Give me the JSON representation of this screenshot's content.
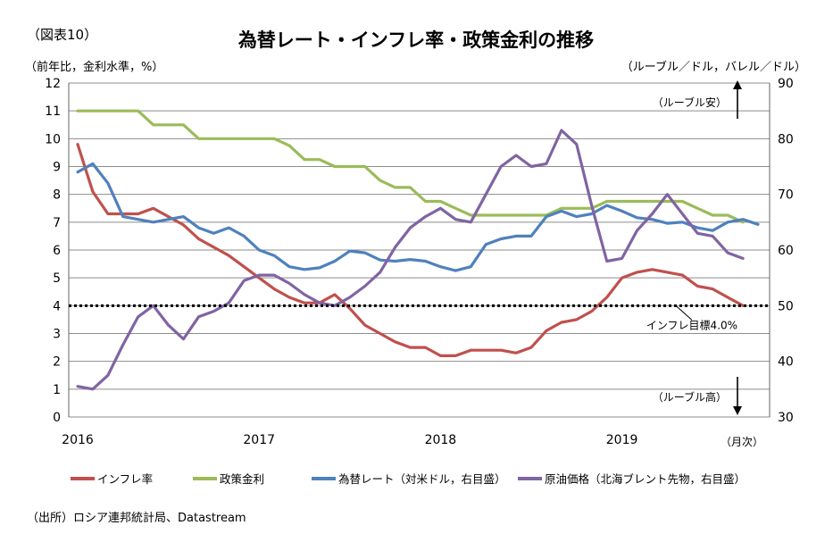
{
  "figure_label": "（図表10）",
  "source_note": "（出所）ロシア連邦統計局、Datastream",
  "chart_data": {
    "type": "line",
    "title": "為替レート・インフレ率・政策金利の推移",
    "left_axis_unit": "（前年比，金利水準，%）",
    "right_axis_unit": "（ルーブル／ドル，バレル／ドル）",
    "x_unit": "（月次）",
    "x_ticks": [
      "2016",
      "2017",
      "2018",
      "2019"
    ],
    "ylim_left": [
      0,
      12
    ],
    "yticks_left": [
      "0",
      "1",
      "2",
      "3",
      "4",
      "5",
      "6",
      "7",
      "8",
      "9",
      "10",
      "11",
      "12"
    ],
    "ylim_right": [
      30,
      90
    ],
    "yticks_right": [
      "30",
      "40",
      "50",
      "60",
      "70",
      "80",
      "90"
    ],
    "grid": true,
    "legend_position": "bottom",
    "annotations": {
      "ruble_weak": "（ルーブル安）",
      "ruble_strong": "（ルーブル高）",
      "inflation_target": "インフレ目標4.0%",
      "target_value": 4.0
    },
    "months": [
      "2016-01",
      "2016-02",
      "2016-03",
      "2016-04",
      "2016-05",
      "2016-06",
      "2016-07",
      "2016-08",
      "2016-09",
      "2016-10",
      "2016-11",
      "2016-12",
      "2017-01",
      "2017-02",
      "2017-03",
      "2017-04",
      "2017-05",
      "2017-06",
      "2017-07",
      "2017-08",
      "2017-09",
      "2017-10",
      "2017-11",
      "2017-12",
      "2018-01",
      "2018-02",
      "2018-03",
      "2018-04",
      "2018-05",
      "2018-06",
      "2018-07",
      "2018-08",
      "2018-09",
      "2018-10",
      "2018-11",
      "2018-12",
      "2019-01",
      "2019-02",
      "2019-03",
      "2019-04",
      "2019-05",
      "2019-06",
      "2019-07",
      "2019-08",
      "2019-09",
      "2019-10"
    ],
    "series": [
      {
        "name": "インフレ率",
        "axis": "left",
        "color": "#c0504d",
        "values": [
          9.8,
          8.1,
          7.3,
          7.3,
          7.3,
          7.5,
          7.2,
          6.9,
          6.4,
          6.1,
          5.8,
          5.4,
          5.0,
          4.6,
          4.3,
          4.1,
          4.1,
          4.4,
          3.9,
          3.3,
          3.0,
          2.7,
          2.5,
          2.5,
          2.2,
          2.2,
          2.4,
          2.4,
          2.4,
          2.3,
          2.5,
          3.1,
          3.4,
          3.5,
          3.8,
          4.3,
          5.0,
          5.2,
          5.3,
          5.2,
          5.1,
          4.7,
          4.6,
          4.3,
          4.0,
          null
        ]
      },
      {
        "name": "政策金利",
        "axis": "left",
        "color": "#9bbb59",
        "values": [
          11.0,
          11.0,
          11.0,
          11.0,
          11.0,
          10.5,
          10.5,
          10.5,
          10.0,
          10.0,
          10.0,
          10.0,
          10.0,
          10.0,
          9.75,
          9.25,
          9.25,
          9.0,
          9.0,
          9.0,
          8.5,
          8.25,
          8.25,
          7.75,
          7.75,
          7.5,
          7.25,
          7.25,
          7.25,
          7.25,
          7.25,
          7.25,
          7.5,
          7.5,
          7.5,
          7.75,
          7.75,
          7.75,
          7.75,
          7.75,
          7.75,
          7.5,
          7.25,
          7.25,
          7.0,
          null
        ]
      },
      {
        "name": "為替レート（対米ドル，右目盛）",
        "axis": "right",
        "color": "#4f81bd",
        "values": [
          74.0,
          75.5,
          72.0,
          66.0,
          65.5,
          65.0,
          65.5,
          66.0,
          64.0,
          63.0,
          64.0,
          62.5,
          60.0,
          59.0,
          57.0,
          56.5,
          56.8,
          58.0,
          59.8,
          59.5,
          58.2,
          58.0,
          58.3,
          58.0,
          57.0,
          56.3,
          57.0,
          61.0,
          62.0,
          62.5,
          62.5,
          66.0,
          67.0,
          66.0,
          66.5,
          68.0,
          67.0,
          65.8,
          65.5,
          64.8,
          65.0,
          64.0,
          63.5,
          65.0,
          65.5,
          64.6
        ]
      },
      {
        "name": "原油価格（北海ブレント先物，右目盛）",
        "axis": "right",
        "color": "#8064a2",
        "values": [
          35.5,
          35.0,
          37.5,
          43.0,
          48.0,
          50.0,
          46.5,
          44.0,
          48.0,
          49.0,
          50.5,
          54.5,
          55.5,
          55.5,
          54.0,
          52.0,
          50.5,
          50.0,
          51.5,
          53.5,
          56.0,
          60.5,
          64.0,
          66.0,
          67.5,
          65.5,
          65.0,
          70.0,
          75.0,
          77.0,
          75.0,
          75.5,
          81.5,
          79.0,
          68.0,
          58.0,
          58.5,
          63.5,
          66.5,
          70.0,
          66.5,
          63.0,
          62.5,
          59.5,
          58.5,
          null
        ]
      }
    ]
  }
}
